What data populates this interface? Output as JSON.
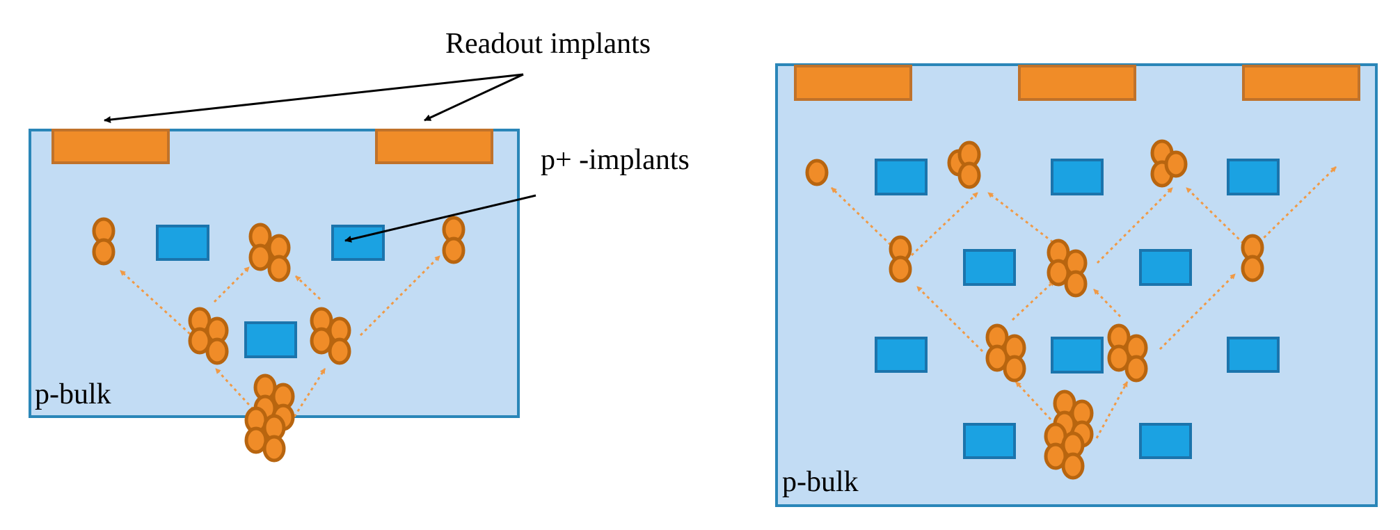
{
  "labels": {
    "readout_implants": "Readout implants",
    "p_plus_implants": "p+ -implants",
    "left_bulk": "p-bulk",
    "right_bulk": "p-bulk"
  },
  "colors": {
    "bulk_fill": "#c2dcf4",
    "bulk_border": "#2a86b8",
    "readout_fill": "#f08c28",
    "readout_border": "#c0722a",
    "p_plus_fill": "#1ba2e2",
    "p_plus_border": "#1b74ac",
    "charge_fill": "#f08c28",
    "charge_border": "#b8650f",
    "drift_arrow": "#f09a46",
    "pointer_arrow": "#000000"
  },
  "icons": {
    "charge_carrier": "ellipse",
    "drift_path": "dotted-arrow",
    "pointer": "black-arrow"
  }
}
